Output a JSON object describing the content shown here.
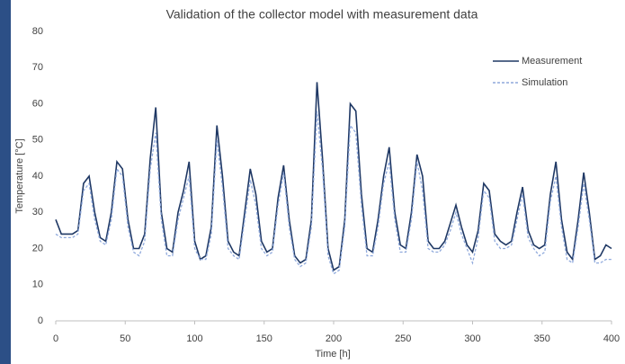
{
  "chart_data": {
    "type": "line",
    "title": "Validation of the collector model with measurement data",
    "x_label": "Time [h]",
    "y_label": "Temperature [°C]",
    "x": [
      0,
      4,
      8,
      12,
      16,
      20,
      24,
      28,
      32,
      36,
      40,
      44,
      48,
      52,
      56,
      60,
      64,
      68,
      72,
      76,
      80,
      84,
      88,
      92,
      96,
      100,
      104,
      108,
      112,
      116,
      120,
      124,
      128,
      132,
      136,
      140,
      144,
      148,
      152,
      156,
      160,
      164,
      168,
      172,
      176,
      180,
      184,
      188,
      192,
      196,
      200,
      204,
      208,
      212,
      216,
      220,
      224,
      228,
      232,
      236,
      240,
      244,
      248,
      252,
      256,
      260,
      264,
      268,
      272,
      276,
      280,
      284,
      288,
      292,
      296,
      300,
      304,
      308,
      312,
      316,
      320,
      324,
      328,
      332,
      336,
      340,
      344,
      348,
      352,
      356,
      360,
      364,
      368,
      372,
      376,
      380,
      384,
      388,
      392,
      396,
      400
    ],
    "series": [
      {
        "name": "Measurement",
        "color": "#1f3864",
        "dash": false,
        "values": [
          28,
          24,
          24,
          24,
          25,
          38,
          40,
          30,
          23,
          22,
          30,
          44,
          42,
          28,
          20,
          20,
          24,
          45,
          59,
          30,
          20,
          19,
          30,
          36,
          44,
          22,
          17,
          18,
          26,
          54,
          40,
          22,
          19,
          18,
          30,
          42,
          35,
          22,
          19,
          20,
          34,
          43,
          28,
          18,
          16,
          17,
          28,
          66,
          45,
          20,
          14,
          15,
          28,
          60,
          58,
          35,
          20,
          19,
          28,
          40,
          48,
          30,
          21,
          20,
          30,
          46,
          40,
          22,
          20,
          20,
          22,
          27,
          32,
          26,
          21,
          19,
          25,
          38,
          36,
          24,
          22,
          21,
          22,
          30,
          37,
          25,
          21,
          20,
          21,
          35,
          44,
          28,
          19,
          17,
          28,
          41,
          30,
          17,
          18,
          21,
          20
        ]
      },
      {
        "name": "Simulation",
        "color": "#8fa9dc",
        "dash": true,
        "values": [
          24,
          23,
          23,
          23,
          24,
          36,
          38,
          28,
          22,
          21,
          28,
          42,
          40,
          26,
          19,
          18,
          22,
          42,
          52,
          28,
          18,
          18,
          28,
          34,
          40,
          20,
          17,
          17,
          24,
          50,
          37,
          20,
          18,
          17,
          28,
          39,
          32,
          20,
          18,
          19,
          32,
          41,
          26,
          17,
          15,
          16,
          26,
          58,
          42,
          18,
          13,
          14,
          26,
          54,
          52,
          32,
          18,
          18,
          26,
          38,
          44,
          28,
          19,
          19,
          28,
          44,
          36,
          20,
          19,
          19,
          21,
          25,
          30,
          24,
          20,
          16,
          23,
          36,
          34,
          22,
          20,
          20,
          21,
          28,
          35,
          23,
          20,
          18,
          19,
          33,
          40,
          26,
          17,
          16,
          26,
          38,
          28,
          16,
          16,
          17,
          17
        ]
      }
    ],
    "xlim": [
      0,
      400
    ],
    "xticks": [
      0,
      50,
      100,
      150,
      200,
      250,
      300,
      350,
      400
    ],
    "ylim": [
      0,
      80
    ],
    "yticks": [
      0,
      10,
      20,
      30,
      40,
      50,
      60,
      70,
      80
    ],
    "grid": false,
    "legend": "top-right"
  }
}
